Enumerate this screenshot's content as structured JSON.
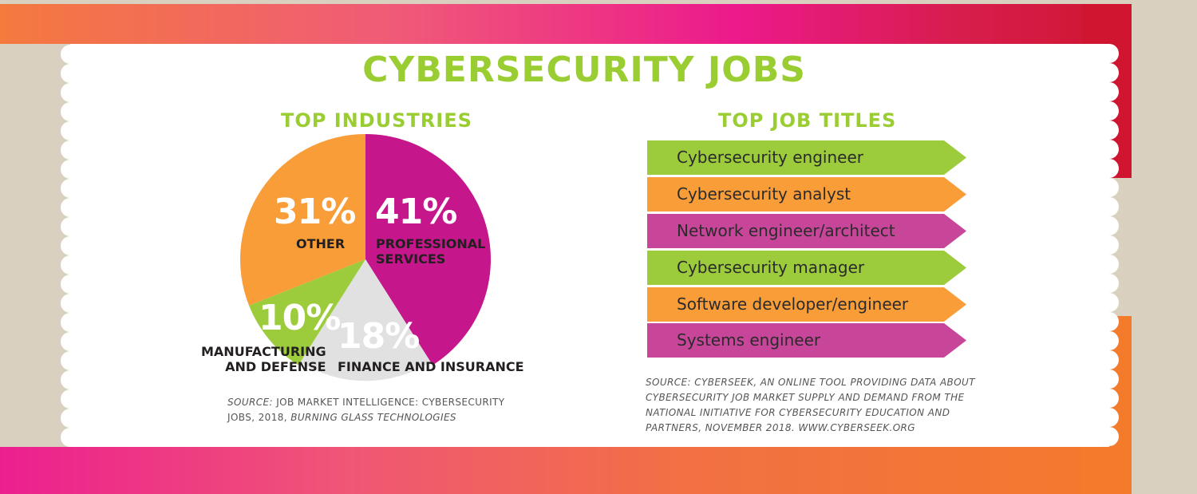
{
  "title": "CYBERSECURITY JOBS",
  "colors": {
    "green": "#9ccb3b",
    "orange": "#f99d38",
    "magenta": "#c5168c",
    "purple": "#c8469a",
    "grey": "#e1e1e1",
    "title_green": "#9acd32"
  },
  "industries": {
    "title": "TOP INDUSTRIES",
    "source": {
      "label": "SOURCE:",
      "text": "JOB MARKET INTELLIGENCE: CYBERSECURITY",
      "line2a": "JOBS, 2018,",
      "line2b": "BURNING GLASS TECHNOLOGIES"
    }
  },
  "job_titles": {
    "title": "TOP JOB TITLES",
    "source_lines": [
      "SOURCE: CYBERSEEK, AN ONLINE TOOL PROVIDING DATA ABOUT",
      "CYBERSECURITY JOB MARKET SUPPLY AND DEMAND FROM THE",
      "NATIONAL INITIATIVE FOR CYBERSECURITY EDUCATION AND",
      "PARTNERS, NOVEMBER 2018. WWW.CYBERSEEK.ORG"
    ]
  },
  "chart_data": [
    {
      "type": "pie",
      "title": "TOP INDUSTRIES",
      "slices": [
        {
          "label": "PROFESSIONAL SERVICES",
          "label_lines": [
            "PROFESSIONAL",
            "SERVICES"
          ],
          "value": 41,
          "display": "41%",
          "color": "#c5168c"
        },
        {
          "label": "FINANCE AND INSURANCE",
          "label_lines": [
            "FINANCE AND INSURANCE"
          ],
          "value": 18,
          "display": "18%",
          "color": "#e1e1e1"
        },
        {
          "label": "MANUFACTURING AND DEFENSE",
          "label_lines": [
            "MANUFACTURING",
            "AND DEFENSE"
          ],
          "value": 10,
          "display": "10%",
          "color": "#9ccb3b"
        },
        {
          "label": "OTHER",
          "label_lines": [
            "OTHER"
          ],
          "value": 31,
          "display": "31%",
          "color": "#f99d38"
        }
      ]
    },
    {
      "type": "table",
      "title": "TOP JOB TITLES",
      "categories": [
        "Cybersecurity engineer",
        "Cybersecurity analyst",
        "Network engineer/architect",
        "Cybersecurity manager",
        "Software developer/engineer",
        "Systems engineer"
      ],
      "colors": [
        "#9ccb3b",
        "#f99d38",
        "#c8469a",
        "#9ccb3b",
        "#f99d38",
        "#c8469a"
      ]
    }
  ]
}
